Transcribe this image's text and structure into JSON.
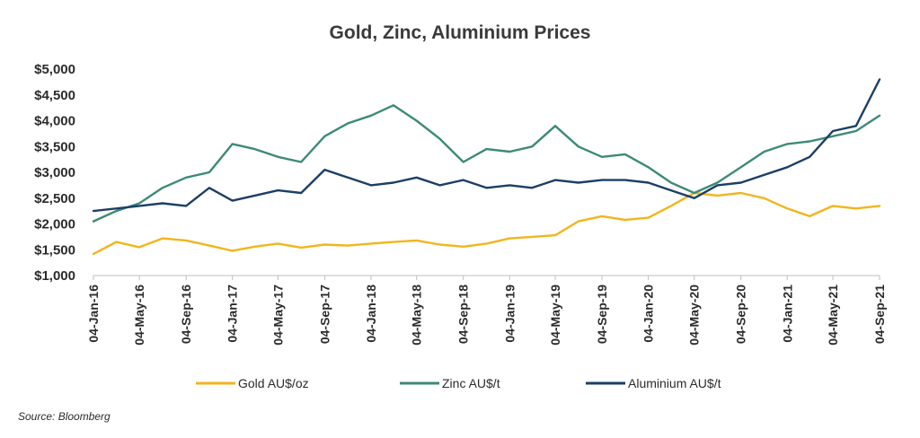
{
  "chart_data": {
    "type": "line",
    "title": "Gold, Zinc, Aluminium Prices",
    "source": "Source: Bloomberg",
    "y_ticks": [
      "$1,000",
      "$1,500",
      "$2,000",
      "$2,500",
      "$3,000",
      "$3,500",
      "$4,000",
      "$4,500",
      "$5,000"
    ],
    "ylim": [
      1000,
      5000
    ],
    "x_ticks": [
      "04-Jan-16",
      "04-May-16",
      "04-Sep-16",
      "04-Jan-17",
      "04-May-17",
      "04-Sep-17",
      "04-Jan-18",
      "04-May-18",
      "04-Sep-18",
      "04-Jan-19",
      "04-May-19",
      "04-Sep-19",
      "04-Jan-20",
      "04-May-20",
      "04-Sep-20",
      "04-Jan-21",
      "04-May-21",
      "04-Sep-21"
    ],
    "legend_position": "bottom",
    "grid": false,
    "series": [
      {
        "name": "Gold AU$/oz",
        "color": "#f2b51b",
        "x": [
          "04-Jan-16",
          "04-Mar-16",
          "04-May-16",
          "04-Jul-16",
          "04-Sep-16",
          "04-Nov-16",
          "04-Jan-17",
          "04-Mar-17",
          "04-May-17",
          "04-Jul-17",
          "04-Sep-17",
          "04-Nov-17",
          "04-Jan-18",
          "04-Mar-18",
          "04-May-18",
          "04-Jul-18",
          "04-Sep-18",
          "04-Nov-18",
          "04-Jan-19",
          "04-Mar-19",
          "04-May-19",
          "04-Jul-19",
          "04-Sep-19",
          "04-Nov-19",
          "04-Jan-20",
          "04-Mar-20",
          "04-May-20",
          "04-Jul-20",
          "04-Sep-20",
          "04-Nov-20",
          "04-Jan-21",
          "04-Mar-21",
          "04-May-21",
          "04-Jul-21",
          "04-Sep-21"
        ],
        "values": [
          1420,
          1650,
          1550,
          1720,
          1680,
          1580,
          1480,
          1560,
          1620,
          1540,
          1600,
          1580,
          1620,
          1650,
          1680,
          1600,
          1560,
          1620,
          1720,
          1750,
          1780,
          2050,
          2150,
          2080,
          2120,
          2350,
          2600,
          2550,
          2600,
          2500,
          2300,
          2150,
          2350,
          2300,
          2350
        ]
      },
      {
        "name": "Zinc AU$/t",
        "color": "#3c8a78",
        "x": [
          "04-Jan-16",
          "04-Mar-16",
          "04-May-16",
          "04-Jul-16",
          "04-Sep-16",
          "04-Nov-16",
          "04-Jan-17",
          "04-Mar-17",
          "04-May-17",
          "04-Jul-17",
          "04-Sep-17",
          "04-Nov-17",
          "04-Jan-18",
          "04-Mar-18",
          "04-May-18",
          "04-Jul-18",
          "04-Sep-18",
          "04-Nov-18",
          "04-Jan-19",
          "04-Mar-19",
          "04-May-19",
          "04-Jul-19",
          "04-Sep-19",
          "04-Nov-19",
          "04-Jan-20",
          "04-Mar-20",
          "04-May-20",
          "04-Jul-20",
          "04-Sep-20",
          "04-Nov-20",
          "04-Jan-21",
          "04-Mar-21",
          "04-May-21",
          "04-Jul-21",
          "04-Sep-21"
        ],
        "values": [
          2050,
          2250,
          2400,
          2700,
          2900,
          3000,
          3550,
          3450,
          3300,
          3200,
          3700,
          3950,
          4100,
          4300,
          4000,
          3650,
          3200,
          3450,
          3400,
          3500,
          3900,
          3500,
          3300,
          3350,
          3100,
          2800,
          2600,
          2800,
          3100,
          3400,
          3550,
          3600,
          3700,
          3800,
          4100
        ]
      },
      {
        "name": "Aluminium AU$/t",
        "color": "#1b3f66",
        "x": [
          "04-Jan-16",
          "04-Mar-16",
          "04-May-16",
          "04-Jul-16",
          "04-Sep-16",
          "04-Nov-16",
          "04-Jan-17",
          "04-Mar-17",
          "04-May-17",
          "04-Jul-17",
          "04-Sep-17",
          "04-Nov-17",
          "04-Jan-18",
          "04-Mar-18",
          "04-May-18",
          "04-Jul-18",
          "04-Sep-18",
          "04-Nov-18",
          "04-Jan-19",
          "04-Mar-19",
          "04-May-19",
          "04-Jul-19",
          "04-Sep-19",
          "04-Nov-19",
          "04-Jan-20",
          "04-Mar-20",
          "04-May-20",
          "04-Jul-20",
          "04-Sep-20",
          "04-Nov-20",
          "04-Jan-21",
          "04-Mar-21",
          "04-May-21",
          "04-Jul-21",
          "04-Sep-21"
        ],
        "values": [
          2250,
          2300,
          2350,
          2400,
          2350,
          2700,
          2450,
          2550,
          2650,
          2600,
          3050,
          2900,
          2750,
          2800,
          2900,
          2750,
          2850,
          2700,
          2750,
          2700,
          2850,
          2800,
          2850,
          2850,
          2800,
          2650,
          2500,
          2750,
          2800,
          2950,
          3100,
          3300,
          3800,
          3900,
          4800
        ]
      }
    ]
  }
}
